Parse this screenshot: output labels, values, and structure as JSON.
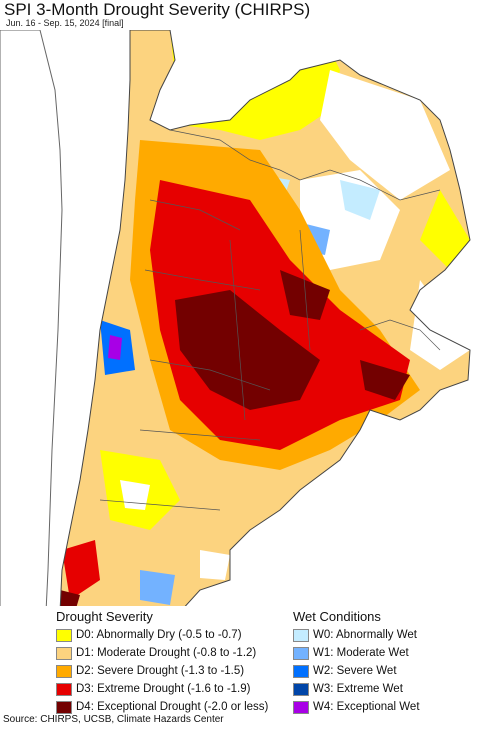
{
  "title": "SPI 3-Month Drought Severity (CHIRPS)",
  "subtitle": "Jun. 16 - Sep. 15, 2024 [final]",
  "legend": {
    "drought_heading": "Drought Severity",
    "wet_heading": "Wet Conditions",
    "drought": [
      {
        "label": "D0: Abnormally Dry (-0.5 to -0.7)",
        "color": "#ffff00"
      },
      {
        "label": "D1: Moderate Drought (-0.8 to -1.2)",
        "color": "#fcd37f"
      },
      {
        "label": "D2: Severe Drought (-1.3 to -1.5)",
        "color": "#ffaa00"
      },
      {
        "label": "D3: Extreme Drought (-1.6 to -1.9)",
        "color": "#e60000"
      },
      {
        "label": "D4: Exceptional Drought (-2.0 or less)",
        "color": "#730000"
      }
    ],
    "wet": [
      {
        "label": "W0: Abnormally Wet",
        "color": "#c4ecff"
      },
      {
        "label": "W1: Moderate Wet",
        "color": "#73b2ff"
      },
      {
        "label": "W2: Severe Wet",
        "color": "#0070ff"
      },
      {
        "label": "W3: Extreme Wet",
        "color": "#0045a8"
      },
      {
        "label": "W4: Exceptional Wet",
        "color": "#a800e6"
      }
    ]
  },
  "source": "Source: CHIRPS, UCSB, Climate Hazards Center"
}
